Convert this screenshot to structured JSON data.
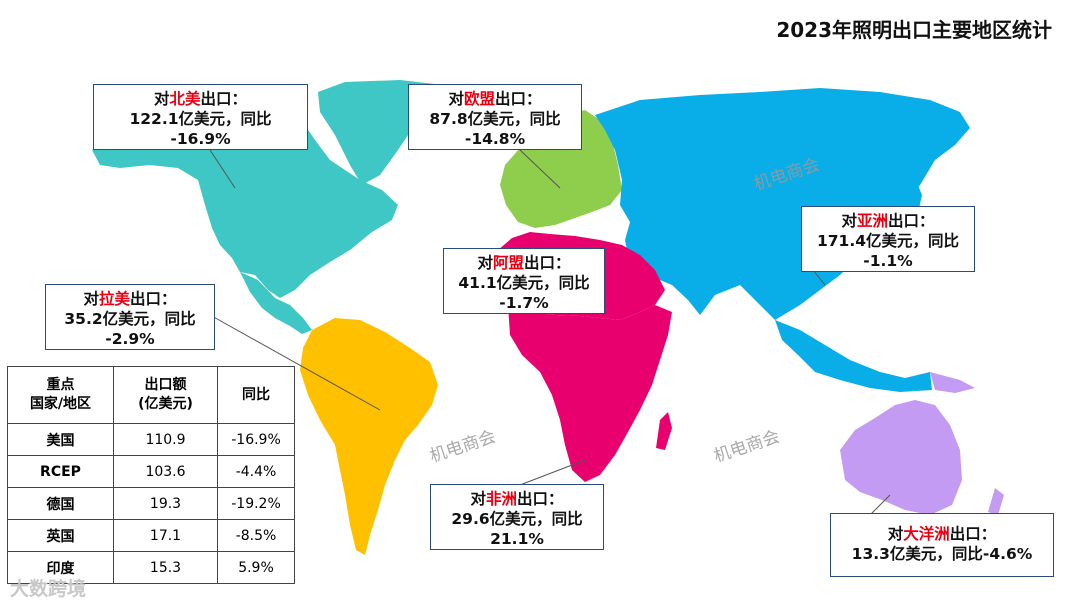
{
  "title": "2023年照明出口主要地区统计",
  "regions": [
    {
      "id": "north-america",
      "prefix": "对",
      "name": "北美",
      "suffix": "出口：",
      "line2": "122.1亿美元，同比",
      "line3": "-16.9%",
      "color": "#3ec7c4"
    },
    {
      "id": "eu",
      "prefix": "对",
      "name": "欧盟",
      "suffix": "出口：",
      "line2": "87.8亿美元，同比",
      "line3": "-14.8%",
      "color": "#8fcd4c"
    },
    {
      "id": "asia",
      "prefix": "对",
      "name": "亚洲",
      "suffix": "出口：",
      "line2": "171.4亿美元，同比",
      "line3": "-1.1%",
      "color": "#09aee8"
    },
    {
      "id": "arab-league",
      "prefix": "对",
      "name": "阿盟",
      "suffix": "出口：",
      "line2": "41.1亿美元，同比",
      "line3": "-1.7%",
      "color": "#e8006f"
    },
    {
      "id": "latin-america",
      "prefix": "对",
      "name": "拉美",
      "suffix": "出口：",
      "line2": "35.2亿美元，同比",
      "line3": "-2.9%",
      "color": "#ffc000"
    },
    {
      "id": "africa",
      "prefix": "对",
      "name": "非洲",
      "suffix": "出口：",
      "line2": "29.6亿美元，同比",
      "line3": "21.1%",
      "color": "#e8006f"
    },
    {
      "id": "oceania",
      "prefix": "对",
      "name": "大洋洲",
      "suffix": "出口：",
      "line2": "13.3亿美元，同比-4.6%",
      "line3": "",
      "color": "#c39bf2"
    }
  ],
  "table": {
    "headers": [
      "重点\n国家/地区",
      "出口额\n(亿美元)",
      "同比"
    ],
    "rows": [
      [
        "美国",
        "110.9",
        "-16.9%"
      ],
      [
        "RCEP",
        "103.6",
        "-4.4%"
      ],
      [
        "德国",
        "19.3",
        "-19.2%"
      ],
      [
        "英国",
        "17.1",
        "-8.5%"
      ],
      [
        "印度",
        "15.3",
        "5.9%"
      ]
    ]
  },
  "watermarks": [
    "机电商会",
    "机电商会",
    "机电商会"
  ],
  "brand": "大数跨境"
}
